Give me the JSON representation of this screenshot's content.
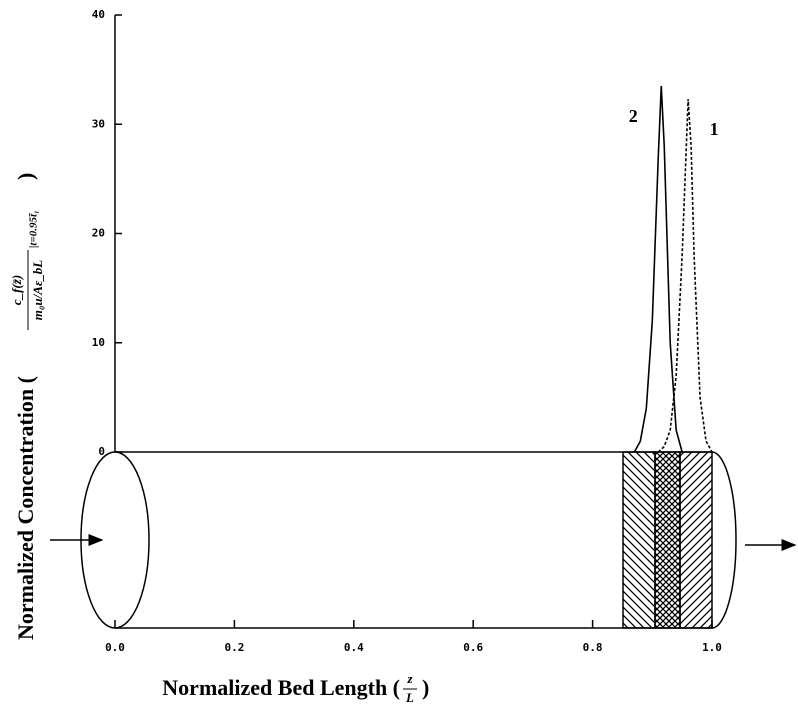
{
  "chart_data": {
    "type": "line",
    "x_label": "Normalized Bed Length (",
    "x_label_fraction": {
      "numerator": "z",
      "denominator": "L"
    },
    "x_label_close": ")",
    "y_label": "Normalized Concentration (",
    "y_label_fraction": {
      "numerator": "c_f(z̄)",
      "denominator": "m₀u/Aε_bL"
    },
    "y_label_condition": "|t=0.95t̄₁",
    "y_label_close": ")",
    "xlim": [
      0,
      1
    ],
    "ylim": [
      0,
      40
    ],
    "xticks": [
      {
        "value": 0,
        "label": "0.0"
      },
      {
        "value": 0.2,
        "label": "0.2"
      },
      {
        "value": 0.4,
        "label": "0.4"
      },
      {
        "value": 0.6,
        "label": "0.6"
      },
      {
        "value": 0.8,
        "label": "0.8"
      },
      {
        "value": 1,
        "label": "1.0"
      }
    ],
    "yticks": [
      0,
      10,
      20,
      30,
      40
    ],
    "series": [
      {
        "name": "1",
        "color": "#000000",
        "line_style": "dashed",
        "x": [
          0.91,
          0.92,
          0.93,
          0.94,
          0.95,
          0.96,
          0.965,
          0.97,
          0.98,
          0.99,
          1.0
        ],
        "values": [
          0,
          0.5,
          2,
          7,
          18,
          32.3,
          28,
          18,
          5,
          1,
          0
        ]
      },
      {
        "name": "2",
        "color": "#000000",
        "line_style": "solid",
        "x": [
          0.87,
          0.88,
          0.89,
          0.9,
          0.91,
          0.915,
          0.92,
          0.93,
          0.94,
          0.95
        ],
        "values": [
          0,
          1,
          4,
          12,
          27,
          33.5,
          28,
          10,
          2,
          0
        ]
      }
    ]
  }
}
